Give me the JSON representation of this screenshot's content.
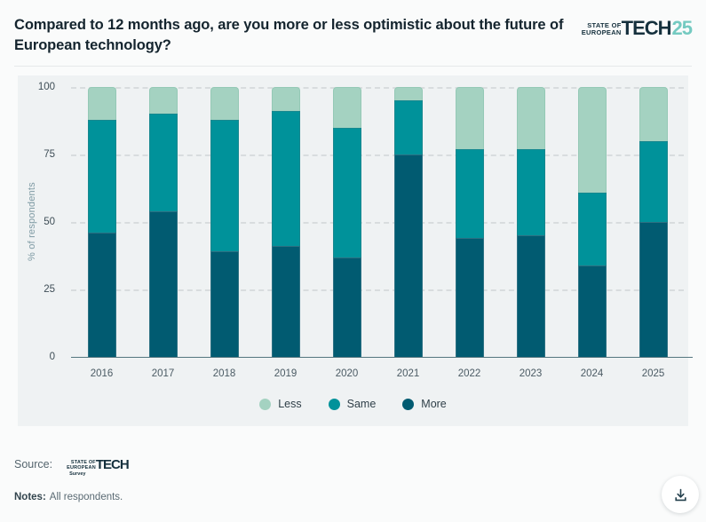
{
  "header": {
    "title": "Compared to 12 months ago, are you more or less optimistic about the future of European technology?",
    "logo": {
      "line1": "STATE OF",
      "line2": "EUROPEAN",
      "word": "TECH",
      "year": "25",
      "dark_color": "#15303d",
      "accent_color": "#74cac1"
    }
  },
  "chart_data": {
    "type": "bar",
    "stacked": true,
    "categories": [
      "2016",
      "2017",
      "2018",
      "2019",
      "2020",
      "2021",
      "2022",
      "2023",
      "2024",
      "2025"
    ],
    "series": [
      {
        "name": "Less",
        "color": "#a4d2c1",
        "values": [
          12,
          10,
          12,
          9,
          15,
          5,
          23,
          23,
          39,
          20
        ]
      },
      {
        "name": "Same",
        "color": "#00929a",
        "values": [
          42,
          36,
          49,
          50,
          48,
          20,
          33,
          32,
          27,
          30
        ]
      },
      {
        "name": "More",
        "color": "#015b71",
        "values": [
          46,
          54,
          39,
          41,
          37,
          75,
          44,
          45,
          34,
          50
        ]
      }
    ],
    "xlabel": "",
    "ylabel": "% of respondents",
    "ylim": [
      0,
      100
    ],
    "yticks": [
      0,
      25,
      50,
      75,
      100
    ],
    "grid": "horizontal-dashed",
    "legend_position": "bottom"
  },
  "footer": {
    "source_label": "Source:",
    "source_logo": {
      "line1": "STATE OF",
      "line2": "EUROPEAN",
      "word": "TECH",
      "sub": "Survey"
    },
    "notes_label": "Notes:",
    "notes_text": "All respondents.",
    "download_tooltip": "Download"
  }
}
